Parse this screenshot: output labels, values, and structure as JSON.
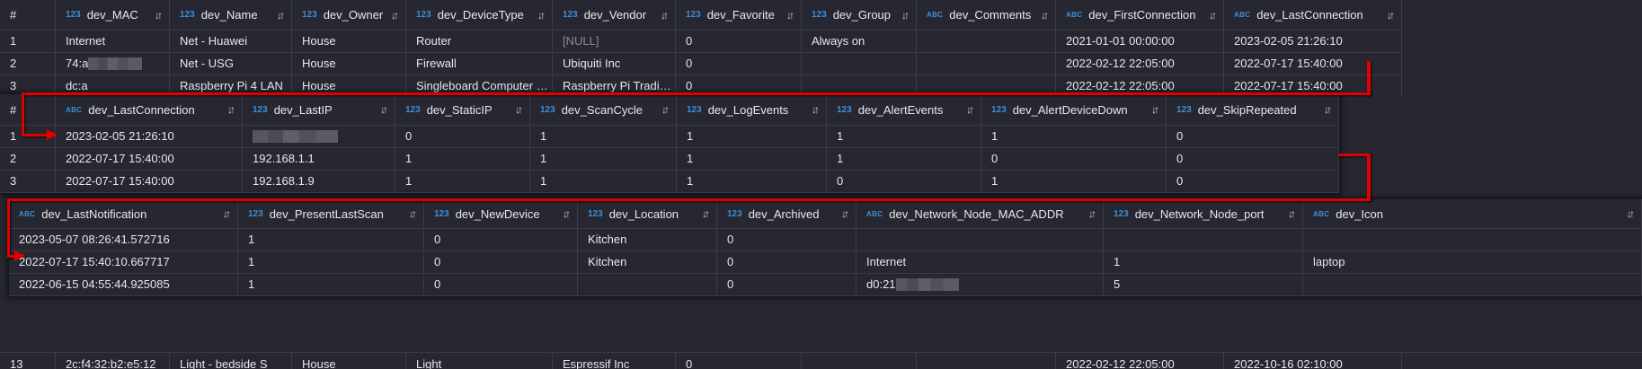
{
  "sort_icon": "sort-arrows-icon",
  "accent_colors": {
    "type_badge": "#3d8fd6",
    "arrow": "#e00000",
    "background": "#262731"
  },
  "panels": [
    {
      "columns": [
        {
          "label": "#",
          "type": ""
        },
        {
          "label": "dev_MAC",
          "type": "123"
        },
        {
          "label": "dev_Name",
          "type": "123"
        },
        {
          "label": "dev_Owner",
          "type": "123"
        },
        {
          "label": "dev_DeviceType",
          "type": "123"
        },
        {
          "label": "dev_Vendor",
          "type": "123"
        },
        {
          "label": "dev_Favorite",
          "type": "123"
        },
        {
          "label": "dev_Group",
          "type": "123"
        },
        {
          "label": "dev_Comments",
          "type": "ABC"
        },
        {
          "label": "dev_FirstConnection",
          "type": "ABC"
        },
        {
          "label": "dev_LastConnection",
          "type": "ABC"
        }
      ],
      "rows": [
        [
          "1",
          "Internet",
          "Net - Huawei",
          "House",
          "Router",
          "[NULL]",
          "0",
          "Always on",
          "",
          "2021-01-01 00:00:00",
          "2023-02-05 21:26:10"
        ],
        [
          "2",
          "74:a",
          "Net - USG",
          "House",
          "Firewall",
          "Ubiquiti Inc",
          "0",
          "",
          "",
          "2022-02-12 22:05:00",
          "2022-07-17 15:40:00"
        ],
        [
          "3",
          "dc:a",
          "Raspberry Pi 4 LAN",
          "House",
          "Singleboard Computer …",
          "Raspberry Pi Tradi…",
          "0",
          "",
          "",
          "2022-02-12 22:05:00",
          "2022-07-17 15:40:00"
        ]
      ]
    },
    {
      "columns": [
        {
          "label": "#",
          "type": ""
        },
        {
          "label": "dev_LastConnection",
          "type": "ABC"
        },
        {
          "label": "dev_LastIP",
          "type": "123"
        },
        {
          "label": "dev_StaticIP",
          "type": "123"
        },
        {
          "label": "dev_ScanCycle",
          "type": "123"
        },
        {
          "label": "dev_LogEvents",
          "type": "123"
        },
        {
          "label": "dev_AlertEvents",
          "type": "123"
        },
        {
          "label": "dev_AlertDeviceDown",
          "type": "123"
        },
        {
          "label": "dev_SkipRepeated",
          "type": "123"
        }
      ],
      "rows": [
        [
          "1",
          "2023-02-05 21:26:10",
          "",
          "0",
          "1",
          "1",
          "1",
          "1",
          "0"
        ],
        [
          "2",
          "2022-07-17 15:40:00",
          "192.168.1.1",
          "1",
          "1",
          "1",
          "1",
          "0",
          "0"
        ],
        [
          "3",
          "2022-07-17 15:40:00",
          "192.168.1.9",
          "1",
          "1",
          "1",
          "0",
          "1",
          "0"
        ]
      ]
    },
    {
      "columns": [
        {
          "label": "dev_LastNotification",
          "type": "ABC"
        },
        {
          "label": "dev_PresentLastScan",
          "type": "123"
        },
        {
          "label": "dev_NewDevice",
          "type": "123"
        },
        {
          "label": "dev_Location",
          "type": "123"
        },
        {
          "label": "dev_Archived",
          "type": "123"
        },
        {
          "label": "dev_Network_Node_MAC_ADDR",
          "type": "ABC"
        },
        {
          "label": "dev_Network_Node_port",
          "type": "123"
        },
        {
          "label": "dev_Icon",
          "type": "ABC"
        }
      ],
      "rows": [
        [
          "2023-05-07 08:26:41.572716",
          "1",
          "0",
          "Kitchen",
          "0",
          "",
          "",
          ""
        ],
        [
          "2022-07-17 15:40:10.667717",
          "1",
          "0",
          "Kitchen",
          "0",
          "Internet",
          "1",
          "laptop"
        ],
        [
          "2022-06-15 04:55:44.925085",
          "1",
          "0",
          "",
          "0",
          "d0:21",
          "5",
          ""
        ]
      ]
    }
  ],
  "bottom_row": [
    "13",
    "2c:f4:32:b2:e5:12",
    "Light - bedside S",
    "House",
    "Light",
    "Espressif Inc",
    "0",
    "",
    "",
    "2022-02-12 22:05:00",
    "2022-10-16 02:10:00"
  ]
}
